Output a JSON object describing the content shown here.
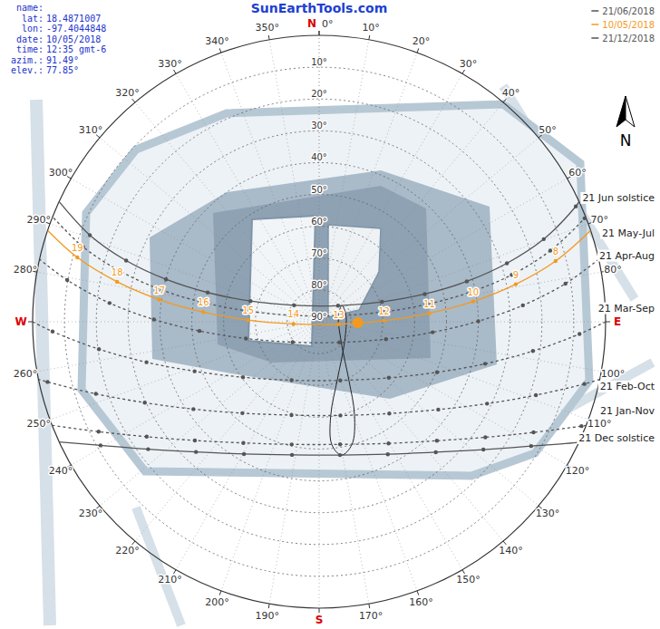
{
  "chart_data": {
    "type": "sun_path",
    "title": "SunEarthTools.com",
    "info": [
      {
        "label": "name:"
      },
      {
        "label": "lat:",
        "value": "18.4871007"
      },
      {
        "label": "lon:",
        "value": "-97.4044848"
      },
      {
        "label": "date:",
        "value": "10/05/2018"
      },
      {
        "label": "time:",
        "value": "12:35 gmt-6"
      },
      {
        "label": "azim.:",
        "value": "91.49°"
      },
      {
        "label": "elev.:",
        "value": "77.85°"
      }
    ],
    "legend": "top-right",
    "legend_items": [
      {
        "label": "21/06/2018",
        "color": "#555555"
      },
      {
        "label": "10/05/2018",
        "color": "#f39a1e"
      },
      {
        "label": "21/12/2018",
        "color": "#555555"
      }
    ],
    "north_arrow": "N",
    "grid": true,
    "azimuth_lim": [
      0,
      360
    ],
    "elevation_lim": [
      0,
      90
    ],
    "compass": [
      {
        "value": 0,
        "label": "N"
      },
      {
        "value": 90,
        "label": "E"
      },
      {
        "value": 180,
        "label": "S"
      },
      {
        "value": 270,
        "label": "W"
      }
    ],
    "azimuth_ticks": [
      {
        "value": 0,
        "label": "0°"
      },
      {
        "value": 10,
        "label": "10°"
      },
      {
        "value": 20,
        "label": "20°"
      },
      {
        "value": 30,
        "label": "30°"
      },
      {
        "value": 40,
        "label": "40°"
      },
      {
        "value": 50,
        "label": "50°"
      },
      {
        "value": 60,
        "label": "60°"
      },
      {
        "value": 70,
        "label": "70°"
      },
      {
        "value": 80,
        "label": "80°"
      },
      {
        "value": 100,
        "label": "100°"
      },
      {
        "value": 110,
        "label": "110°"
      },
      {
        "value": 120,
        "label": "120°"
      },
      {
        "value": 130,
        "label": "130°"
      },
      {
        "value": 140,
        "label": "140°"
      },
      {
        "value": 150,
        "label": "150°"
      },
      {
        "value": 160,
        "label": "160°"
      },
      {
        "value": 170,
        "label": "170°"
      },
      {
        "value": 190,
        "label": "190°"
      },
      {
        "value": 200,
        "label": "200°"
      },
      {
        "value": 210,
        "label": "210°"
      },
      {
        "value": 220,
        "label": "220°"
      },
      {
        "value": 230,
        "label": "230°"
      },
      {
        "value": 240,
        "label": "240°"
      },
      {
        "value": 250,
        "label": "250°"
      },
      {
        "value": 260,
        "label": "260°"
      },
      {
        "value": 280,
        "label": "280°"
      },
      {
        "value": 290,
        "label": "290°"
      },
      {
        "value": 300,
        "label": "300°"
      },
      {
        "value": 310,
        "label": "310°"
      },
      {
        "value": 320,
        "label": "320°"
      },
      {
        "value": 330,
        "label": "330°"
      },
      {
        "value": 340,
        "label": "340°"
      },
      {
        "value": 350,
        "label": "350°"
      }
    ],
    "elevation_ticks": [
      {
        "value": 10,
        "label": "10°"
      },
      {
        "value": 20,
        "label": "20°"
      },
      {
        "value": 30,
        "label": "30°"
      },
      {
        "value": 40,
        "label": "40°"
      },
      {
        "value": 50,
        "label": "50°"
      },
      {
        "value": 60,
        "label": "60°"
      },
      {
        "value": 70,
        "label": "70°"
      },
      {
        "value": 80,
        "label": "80°"
      },
      {
        "value": 90,
        "label": "90°"
      }
    ],
    "series": [
      {
        "name": "21 Jun solstice",
        "color": "#555555",
        "line_style": "solid",
        "marker": "circle",
        "hours": [
          null,
          7,
          8,
          9,
          10,
          11,
          12,
          13,
          14,
          15,
          16,
          17,
          18,
          19,
          null
        ],
        "azimuth": [
          65.2,
          65.8,
          69.8,
          72.7,
          74.7,
          75.3,
          72.4,
          49.7,
          303.4,
          286.8,
          284.7,
          285.5,
          287.6,
          290.7,
          294.8
        ],
        "elevation": [
          0,
          1.6,
          14.8,
          28.2,
          41.9,
          55.7,
          69.3,
          82.2,
          80.6,
          67.5,
          53.8,
          40.1,
          26.4,
          13,
          0
        ]
      },
      {
        "name": "21 May-Jul",
        "color": "#555555",
        "line_style": "dashed",
        "marker": "circle",
        "hours": [
          null,
          7,
          8,
          9,
          10,
          11,
          12,
          13,
          14,
          15,
          16,
          17,
          18,
          19,
          null
        ],
        "azimuth": [
          68.5,
          68.7,
          72.9,
          76.3,
          78.9,
          80.8,
          81.3,
          72.5,
          284.1,
          278.6,
          279.4,
          281.4,
          284.2,
          287.6,
          291.5
        ],
        "elevation": [
          0,
          0.5,
          14,
          27.7,
          41.6,
          55.6,
          69.7,
          83.6,
          81.8,
          67.8,
          53.7,
          39.7,
          25.8,
          12.2,
          0
        ]
      },
      {
        "name": "21 Apr-Aug",
        "color": "#555555",
        "line_style": "dashed",
        "marker": "circle",
        "hours": [
          null,
          8,
          9,
          10,
          11,
          12,
          13,
          14,
          15,
          16,
          17,
          18,
          19,
          null
        ],
        "azimuth": [
          77.4,
          81.2,
          85.4,
          89.8,
          95.3,
          104.6,
          135.5,
          232.4,
          257.1,
          265.6,
          270.8,
          275.1,
          279.4,
          282.6
        ],
        "elevation": [
          0,
          11.7,
          25.8,
          40,
          54.2,
          68.3,
          80.9,
          79.5,
          66.4,
          52.3,
          38.1,
          23.9,
          9.8,
          0
        ]
      },
      {
        "name": "21 Mar-Sep",
        "color": "#555555",
        "line_style": "dashed",
        "marker": "circle",
        "hours": [
          null,
          8,
          9,
          10,
          11,
          12,
          13,
          14,
          15,
          16,
          17,
          18,
          19,
          null
        ],
        "azimuth": [
          90,
          92.7,
          97.8,
          104.2,
          113.2,
          128.8,
          160.2,
          205.2,
          233.9,
          248.3,
          256.8,
          262.9,
          267.9,
          270
        ],
        "elevation": [
          0,
          8.1,
          22.2,
          36.2,
          49.7,
          61.9,
          70.4,
          69.7,
          60.4,
          47.9,
          34.3,
          20.3,
          6.2,
          0
        ]
      },
      {
        "name": "21 Feb-Oct",
        "color": "#555555",
        "line_style": "dashed",
        "marker": "circle",
        "hours": [
          null,
          8,
          9,
          10,
          11,
          12,
          13,
          14,
          15,
          16,
          17,
          18,
          19,
          null
        ],
        "azimuth": [
          101.6,
          103.2,
          108.7,
          116,
          126.4,
          142.6,
          167.2,
          196.5,
          220,
          235.2,
          245.1,
          252.1,
          257.5,
          258.4
        ],
        "elevation": [
          0,
          4.4,
          18.1,
          31.3,
          43.5,
          53.7,
          59.8,
          59.4,
          52.5,
          41.9,
          29.6,
          16.3,
          2.6,
          0
        ]
      },
      {
        "name": "21 Jan-Nov",
        "color": "#555555",
        "line_style": "dashed",
        "marker": "circle",
        "hours": [
          null,
          8,
          9,
          10,
          11,
          12,
          13,
          14,
          15,
          16,
          17,
          18,
          null
        ],
        "azimuth": [
          111.2,
          111.7,
          117.3,
          124.8,
          135.3,
          150.3,
          170.3,
          192.6,
          212,
          226.3,
          236.3,
          243.5,
          248.8
        ],
        "elevation": [
          0,
          1.3,
          14.2,
          26.4,
          37.4,
          46,
          50.9,
          50.5,
          45.1,
          36,
          24.9,
          12.6,
          0
        ]
      },
      {
        "name": "21 Dec solstice",
        "color": "#555555",
        "line_style": "solid",
        "marker": "circle",
        "hours": [
          null,
          8,
          9,
          10,
          11,
          12,
          13,
          14,
          15,
          16,
          17,
          18,
          null
        ],
        "azimuth": [
          114.8,
          114.9,
          120.4,
          127.9,
          138.2,
          152.6,
          171.1,
          191.5,
          209.6,
          223.4,
          233.3,
          240.5,
          245.2
        ],
        "elevation": [
          0,
          0.1,
          12.8,
          24.6,
          35,
          43.1,
          47.6,
          47.3,
          42.2,
          33.7,
          23,
          11.1,
          0
        ]
      },
      {
        "color": "#f39a1e",
        "line_style": "solid",
        "marker": "circle",
        "data_labels": true,
        "hours": [
          null,
          8,
          9,
          10,
          11,
          12,
          13,
          14,
          15,
          16,
          17,
          18,
          19,
          null
        ],
        "azimuth": [
          71.4,
          75.6,
          79.2,
          82.5,
          85.6,
          89.1,
          97.2,
          265.1,
          271.4,
          274.8,
          277.9,
          281.2,
          284.9,
          288.6
        ],
        "elevation": [
          0,
          13.3,
          27.1,
          41.2,
          55.3,
          69.6,
          83.8,
          81.9,
          67.7,
          53.5,
          39.3,
          25.3,
          11.4,
          0
        ]
      }
    ],
    "analemma": {
      "color": "#222222",
      "line_style": "solid",
      "azimuth": [
        165,
        159.2,
        153,
        132.9,
        74.3,
        54.4,
        75.2,
        127.4,
        162.1,
        173,
        174.1,
        170.5
      ],
      "elevation": [
        50.1,
        58.7,
        69.4,
        80.5,
        83.7,
        81.2,
        81.3,
        79.9,
        71.2,
        60.2,
        51.2,
        47.5
      ]
    },
    "sun_position": {
      "azimuth": 91.49,
      "elevation": 77.85,
      "color": "#f39a1e"
    }
  }
}
